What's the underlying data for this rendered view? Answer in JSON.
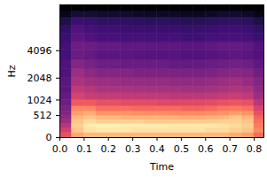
{
  "chart_data": {
    "type": "heatmap",
    "xlabel": "Time",
    "ylabel": "Hz",
    "color": "magma",
    "color_range": [
      -80,
      0
    ],
    "xlim": [
      0,
      0.84
    ],
    "xticks": [
      {
        "value": 0,
        "label": "0.0"
      },
      {
        "value": 0.1,
        "label": "0.1"
      },
      {
        "value": 0.2,
        "label": "0.2"
      },
      {
        "value": 0.3,
        "label": "0.3"
      },
      {
        "value": 0.4,
        "label": "0.4"
      },
      {
        "value": 0.5,
        "label": "0.5"
      },
      {
        "value": 0.6,
        "label": "0.6"
      },
      {
        "value": 0.7,
        "label": "0.7"
      },
      {
        "value": 0.8,
        "label": "0.8"
      }
    ],
    "ylim": [
      0,
      11025
    ],
    "yticks": [
      0,
      512,
      1024,
      2048,
      4096
    ],
    "x_edges": [
      0,
      0.05,
      0.1,
      0.15,
      0.2,
      0.25,
      0.3,
      0.35,
      0.4,
      0.45,
      0.5,
      0.55,
      0.6,
      0.65,
      0.7,
      0.75,
      0.8,
      0.84
    ],
    "y_edges": [
      0,
      100,
      200,
      300,
      400,
      512,
      640,
      800,
      1024,
      1300,
      1600,
      2048,
      2600,
      3300,
      4096,
      5000,
      6000,
      7200,
      8500,
      9700,
      11025
    ],
    "cells": [
      [
        -30,
        -15,
        -12,
        -12,
        -12,
        -12,
        -12,
        -12,
        -12,
        -12,
        -12,
        -12,
        -12,
        -12,
        -14,
        -16,
        -25
      ],
      [
        -35,
        -10,
        -5,
        -4,
        -4,
        -4,
        -5,
        -5,
        -5,
        -5,
        -5,
        -5,
        -6,
        -6,
        -8,
        -10,
        -20
      ],
      [
        -40,
        -8,
        -3,
        -2,
        -2,
        -3,
        -3,
        -3,
        -3,
        -4,
        -4,
        -4,
        -4,
        -5,
        -6,
        -8,
        -22
      ],
      [
        -45,
        -10,
        -6,
        -8,
        -8,
        -8,
        -8,
        -9,
        -9,
        -9,
        -9,
        -9,
        -9,
        -8,
        -8,
        -10,
        -24
      ],
      [
        -48,
        -12,
        -10,
        -12,
        -12,
        -13,
        -13,
        -13,
        -13,
        -13,
        -14,
        -14,
        -13,
        -12,
        -10,
        -12,
        -26
      ],
      [
        -50,
        -16,
        -14,
        -18,
        -18,
        -18,
        -19,
        -19,
        -19,
        -20,
        -20,
        -20,
        -19,
        -18,
        -16,
        -18,
        -30
      ],
      [
        -52,
        -20,
        -20,
        -24,
        -24,
        -24,
        -25,
        -25,
        -25,
        -25,
        -26,
        -26,
        -25,
        -23,
        -22,
        -24,
        -34
      ],
      [
        -54,
        -28,
        -28,
        -30,
        -30,
        -31,
        -31,
        -31,
        -32,
        -32,
        -32,
        -32,
        -31,
        -30,
        -29,
        -30,
        -40
      ],
      [
        -56,
        -34,
        -36,
        -37,
        -37,
        -38,
        -38,
        -38,
        -38,
        -39,
        -39,
        -39,
        -38,
        -37,
        -36,
        -38,
        -45
      ],
      [
        -58,
        -38,
        -40,
        -42,
        -42,
        -42,
        -43,
        -43,
        -43,
        -43,
        -44,
        -44,
        -43,
        -42,
        -41,
        -42,
        -48
      ],
      [
        -58,
        -42,
        -44,
        -45,
        -45,
        -46,
        -46,
        -46,
        -46,
        -47,
        -47,
        -47,
        -46,
        -45,
        -44,
        -46,
        -50
      ],
      [
        -60,
        -45,
        -48,
        -50,
        -50,
        -50,
        -51,
        -51,
        -51,
        -51,
        -52,
        -52,
        -51,
        -50,
        -49,
        -50,
        -54
      ],
      [
        -60,
        -50,
        -52,
        -54,
        -54,
        -55,
        -55,
        -55,
        -55,
        -56,
        -56,
        -56,
        -55,
        -54,
        -53,
        -54,
        -57
      ],
      [
        -62,
        -55,
        -56,
        -58,
        -58,
        -58,
        -59,
        -59,
        -59,
        -59,
        -60,
        -60,
        -59,
        -58,
        -57,
        -58,
        -60
      ],
      [
        -62,
        -54,
        -55,
        -56,
        -56,
        -57,
        -57,
        -57,
        -57,
        -57,
        -58,
        -58,
        -57,
        -56,
        -56,
        -57,
        -60
      ],
      [
        -64,
        -58,
        -60,
        -61,
        -61,
        -62,
        -62,
        -62,
        -62,
        -62,
        -63,
        -63,
        -62,
        -61,
        -61,
        -62,
        -64
      ],
      [
        -66,
        -60,
        -62,
        -63,
        -63,
        -64,
        -64,
        -64,
        -64,
        -64,
        -65,
        -65,
        -64,
        -63,
        -63,
        -64,
        -66
      ],
      [
        -70,
        -64,
        -65,
        -66,
        -66,
        -66,
        -67,
        -67,
        -67,
        -67,
        -68,
        -68,
        -67,
        -66,
        -66,
        -67,
        -70
      ],
      [
        -76,
        -72,
        -72,
        -73,
        -73,
        -73,
        -74,
        -74,
        -74,
        -74,
        -75,
        -75,
        -74,
        -73,
        -73,
        -74,
        -76
      ],
      [
        -80,
        -80,
        -80,
        -80,
        -80,
        -80,
        -80,
        -80,
        -80,
        -80,
        -80,
        -80,
        -80,
        -80,
        -80,
        -80,
        -80
      ]
    ]
  }
}
